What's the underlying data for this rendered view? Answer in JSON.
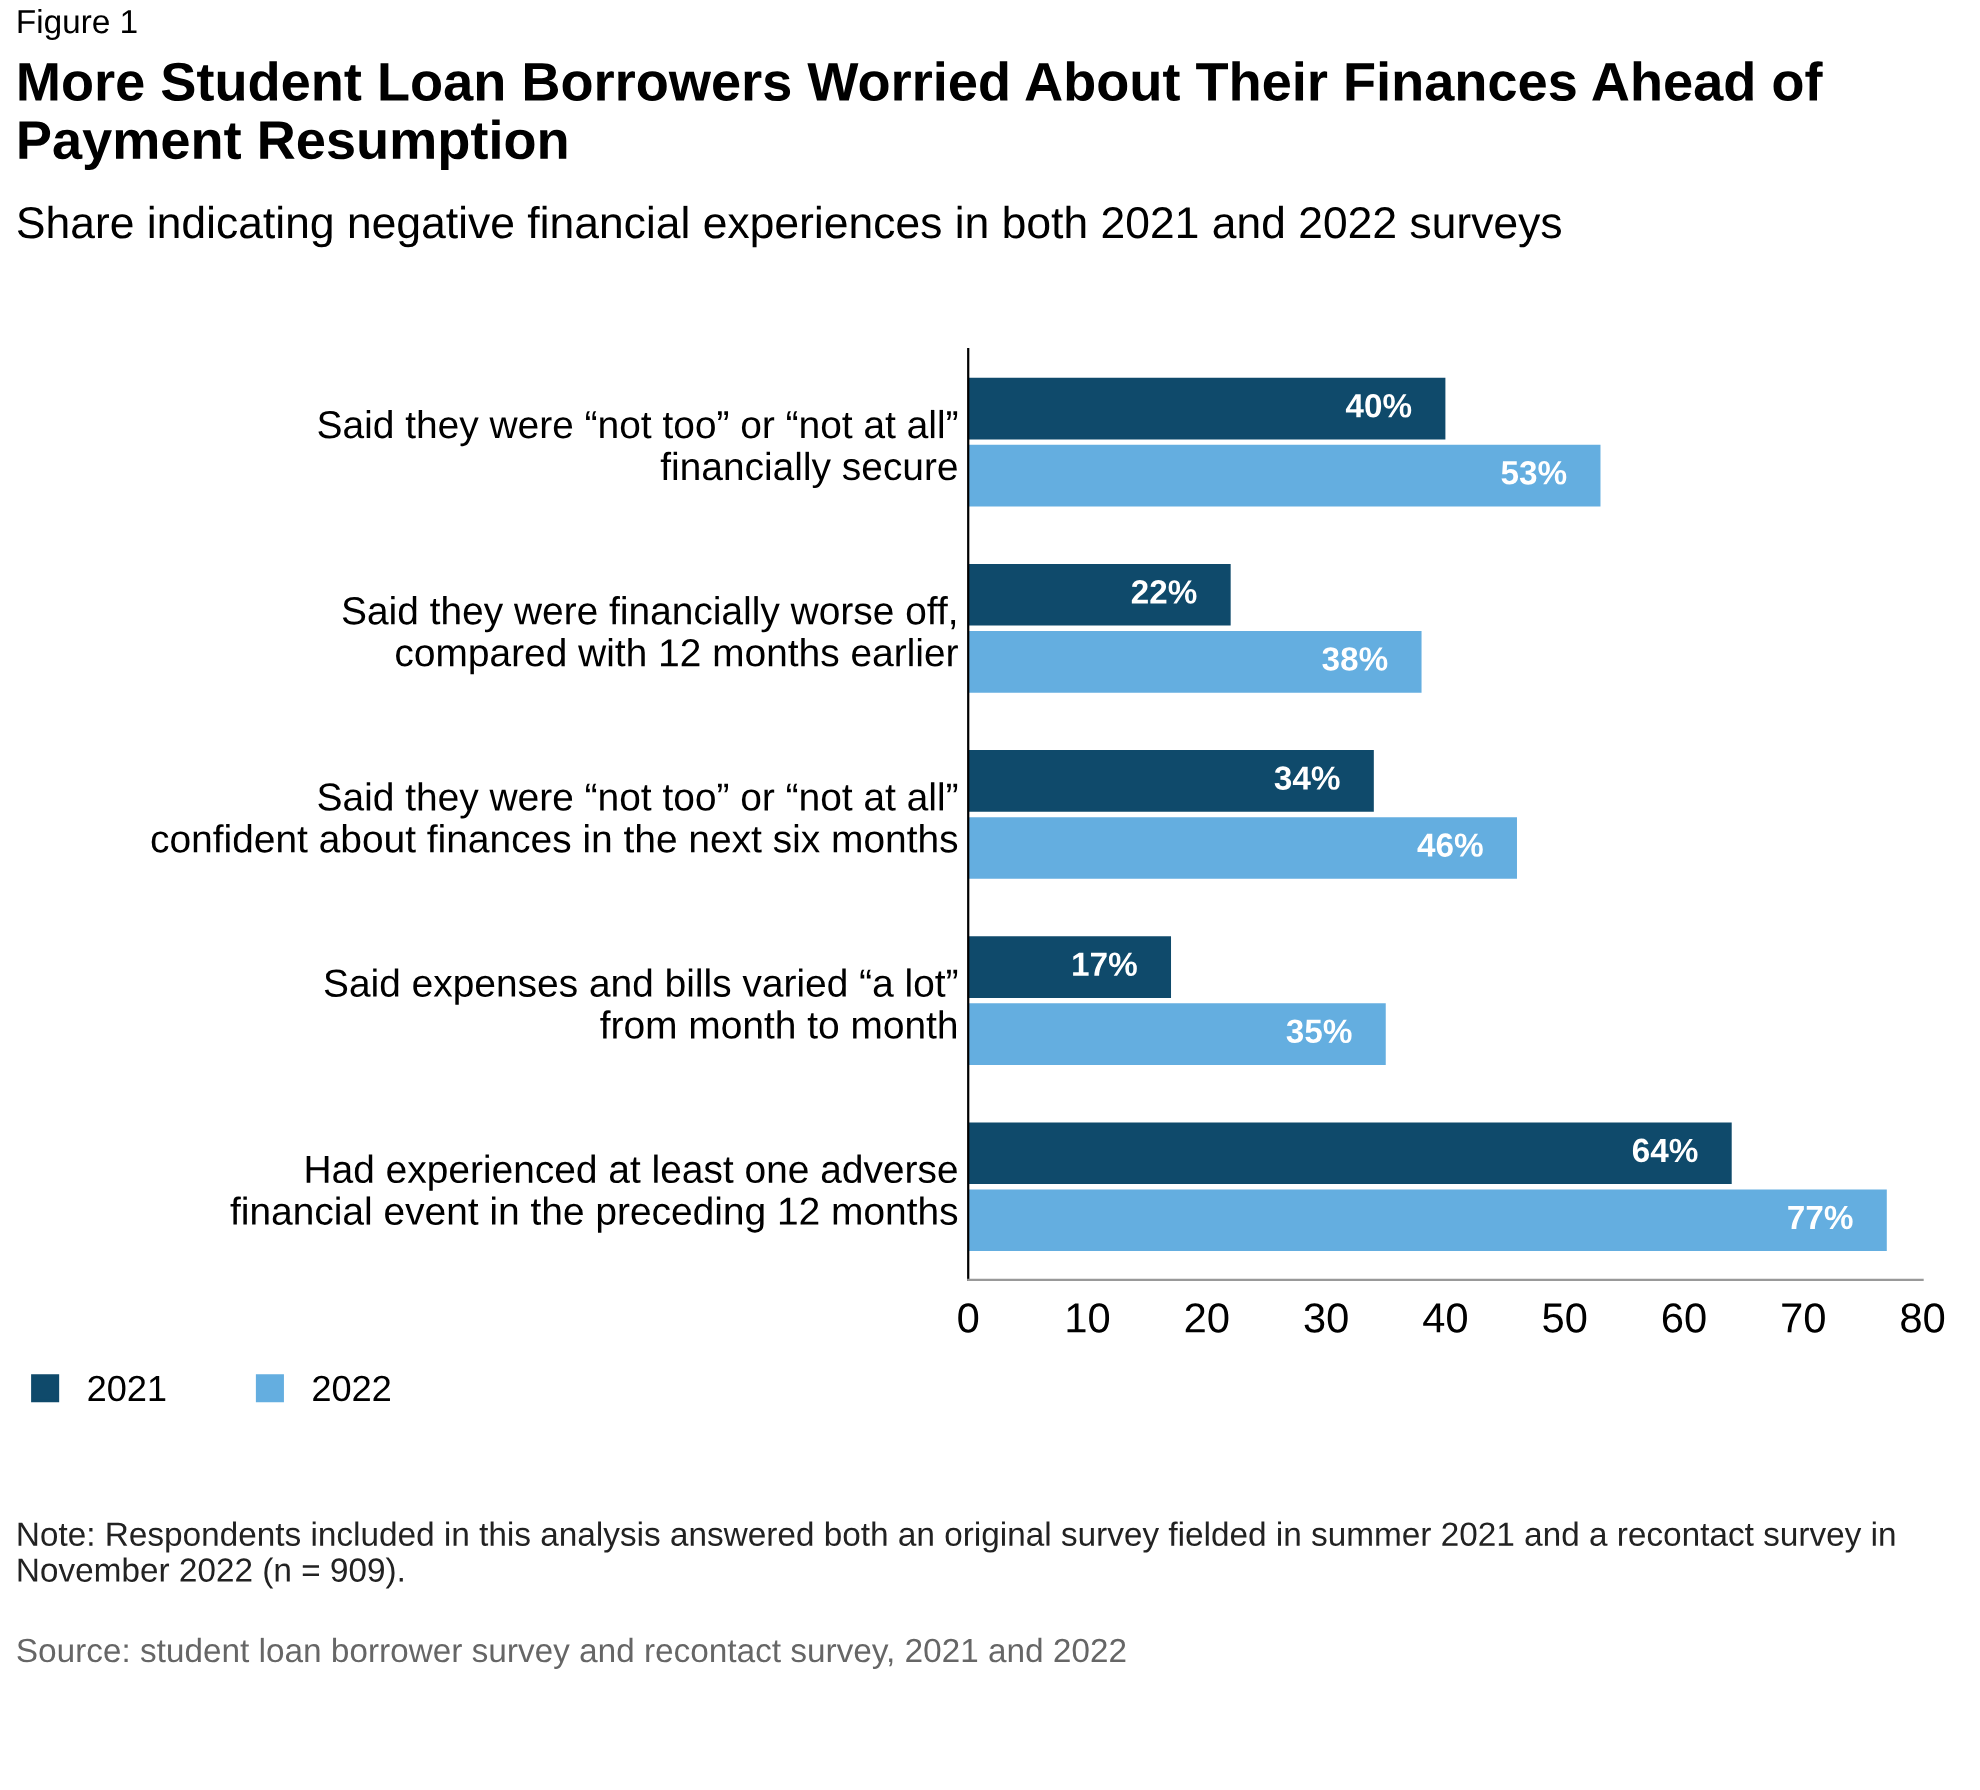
{
  "chart_data": {
    "type": "bar",
    "orientation": "horizontal",
    "title": "More Student Loan Borrowers Worried About Their Finances Ahead of Payment Resumption",
    "subtitle": "Share indicating negative financial experiences in both 2021 and 2022 surveys",
    "categories": [
      "Said they were “not too” or “not at all”\nfinancially secure",
      "Said they were financially worse off,\ncompared with 12 months earlier",
      "Said they were “not too” or “not at all”\nconfident about finances in the next six months",
      "Said expenses and bills varied “a lot”\nfrom month to month",
      "Had experienced at least one adverse\nfinancial event in the preceding 12 months"
    ],
    "series": [
      {
        "name": "2021",
        "color": "#0f4a6b",
        "values": [
          40,
          22,
          34,
          17,
          64
        ],
        "value_labels": [
          "40%",
          "22%",
          "34%",
          "17%",
          "64%"
        ]
      },
      {
        "name": "2022",
        "color": "#64aee0",
        "values": [
          53,
          38,
          46,
          35,
          77
        ],
        "value_labels": [
          "53%",
          "38%",
          "46%",
          "35%",
          "77%"
        ]
      }
    ],
    "xlim": [
      0,
      80
    ],
    "xticks": [
      0,
      10,
      20,
      30,
      40,
      50,
      60,
      70,
      80
    ],
    "grid": false,
    "legend": "bottom left",
    "annotations": [
      "Figure 1",
      "Note: Respondents included in this analysis answered both an original survey fielded in summer 2021 and a recontact survey in November 2022 (n = 909).",
      "Source: student loan borrower survey and recontact survey, 2021 and 2022"
    ]
  }
}
